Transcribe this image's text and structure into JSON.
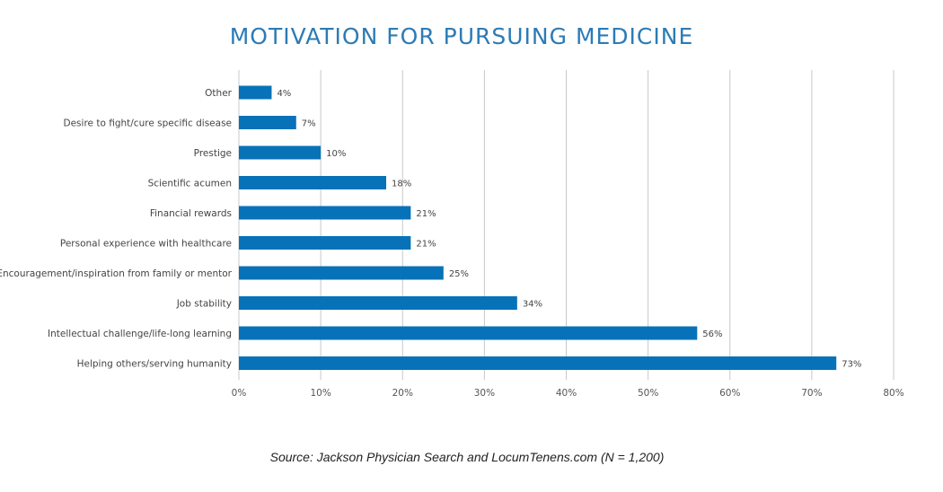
{
  "title": "MOTIVATION FOR PURSUING MEDICINE",
  "source": "Source: Jackson Physician Search and LocumTenens.com (N = 1,200)",
  "colors": {
    "bar": "#0872b8",
    "grid": "#c8c8c8",
    "title": "#2c7bb6"
  },
  "chart_data": {
    "type": "bar",
    "orientation": "horizontal",
    "title": "MOTIVATION FOR PURSUING MEDICINE",
    "categories": [
      "Other",
      "Desire to fight/cure specific disease",
      "Prestige",
      "Scientific acumen",
      "Financial rewards",
      "Personal experience with healthcare",
      "Encouragement/inspiration from family or mentor",
      "Job stability",
      "Intellectual challenge/life-long learning",
      "Helping others/serving humanity"
    ],
    "values": [
      4,
      7,
      10,
      18,
      21,
      21,
      25,
      34,
      56,
      73
    ],
    "value_labels": [
      "4%",
      "7%",
      "10%",
      "18%",
      "21%",
      "21%",
      "25%",
      "34%",
      "56%",
      "73%"
    ],
    "xlim": [
      0,
      80
    ],
    "xticks": [
      "0%",
      "10%",
      "20%",
      "30%",
      "40%",
      "50%",
      "60%",
      "70%",
      "80%"
    ],
    "xlabel": "",
    "ylabel": "",
    "grid": true,
    "legend": "none"
  }
}
